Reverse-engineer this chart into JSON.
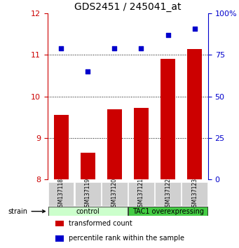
{
  "title": "GDS2451 / 245041_at",
  "samples": [
    "GSM137118",
    "GSM137119",
    "GSM137120",
    "GSM137121",
    "GSM137122",
    "GSM137123"
  ],
  "bar_values": [
    9.55,
    8.65,
    9.7,
    9.72,
    10.9,
    11.15
  ],
  "dot_values": [
    79,
    65,
    79,
    79,
    87,
    91
  ],
  "bar_color": "#cc0000",
  "dot_color": "#0000cc",
  "ylim_left": [
    8,
    12
  ],
  "ylim_right": [
    0,
    100
  ],
  "yticks_left": [
    8,
    9,
    10,
    11,
    12
  ],
  "yticks_right": [
    0,
    25,
    50,
    75,
    100
  ],
  "ytick_labels_right": [
    "0",
    "25",
    "50",
    "75",
    "100%"
  ],
  "groups": [
    {
      "label": "control",
      "indices": [
        0,
        1,
        2
      ],
      "color": "#ccffcc"
    },
    {
      "label": "TAC1 overexpressing",
      "indices": [
        3,
        4,
        5
      ],
      "color": "#44cc44"
    }
  ],
  "strain_label": "strain",
  "legend": [
    {
      "color": "#cc0000",
      "label": "transformed count"
    },
    {
      "color": "#0000cc",
      "label": "percentile rank within the sample"
    }
  ],
  "background_color": "#ffffff",
  "plot_bg_color": "#ffffff"
}
